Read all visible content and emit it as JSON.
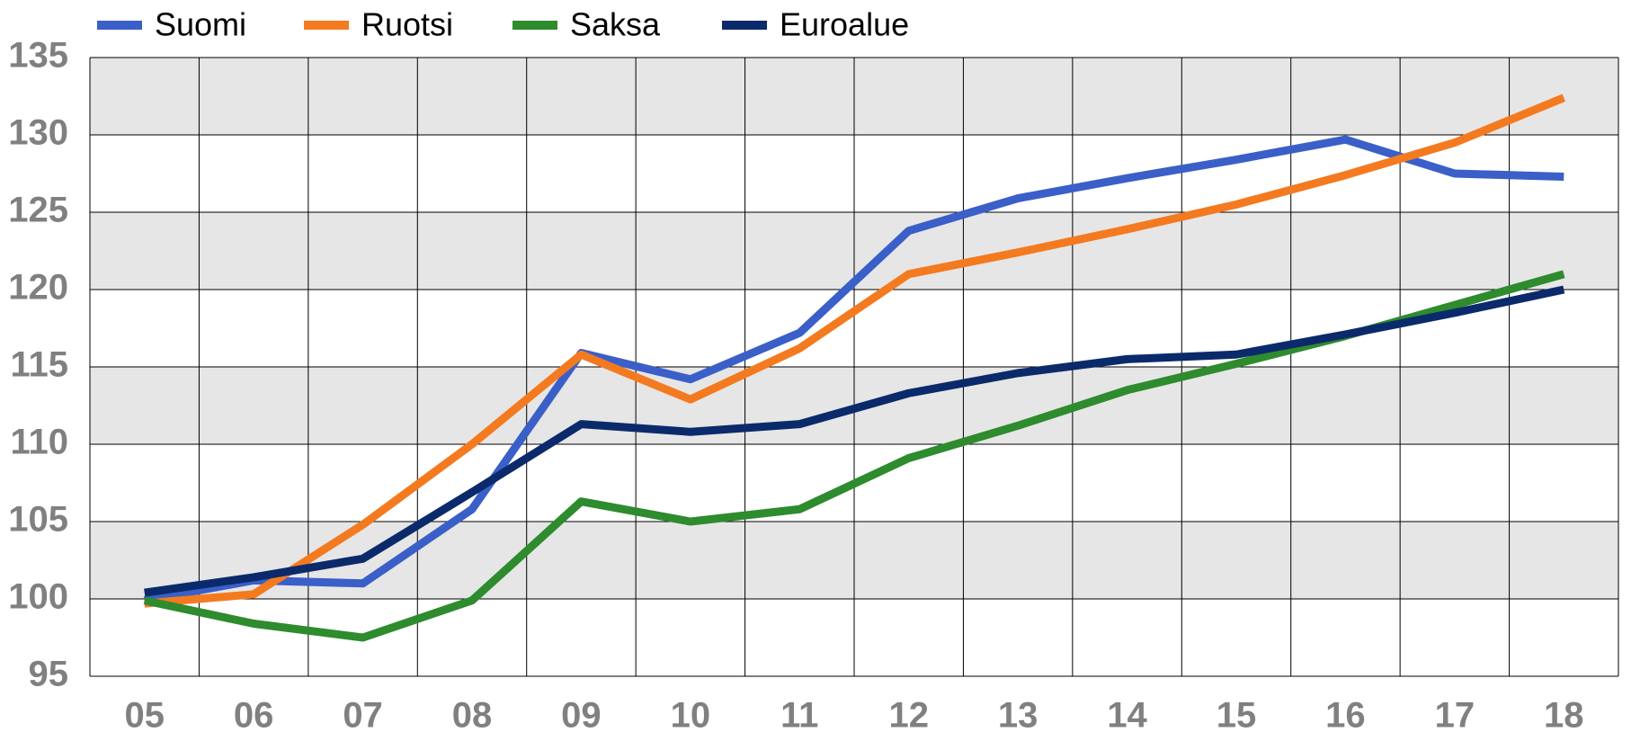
{
  "chart_data": {
    "type": "line",
    "categories": [
      "05",
      "06",
      "07",
      "08",
      "09",
      "10",
      "11",
      "12",
      "13",
      "14",
      "15",
      "16",
      "17",
      "18"
    ],
    "series": [
      {
        "name": "Suomi",
        "color": "#3a5fc8",
        "values": [
          99.9,
          101.2,
          101.0,
          105.8,
          115.9,
          114.2,
          117.2,
          123.8,
          125.9,
          127.2,
          128.4,
          129.7,
          127.5,
          127.3
        ]
      },
      {
        "name": "Ruotsi",
        "color": "#f47a20",
        "values": [
          99.7,
          100.3,
          104.8,
          110.0,
          115.8,
          112.9,
          116.2,
          121.0,
          122.4,
          123.9,
          125.5,
          127.4,
          129.5,
          132.4
        ]
      },
      {
        "name": "Saksa",
        "color": "#2e8b2e",
        "values": [
          99.9,
          98.4,
          97.5,
          99.9,
          106.3,
          105.0,
          105.8,
          109.1,
          111.2,
          113.5,
          115.2,
          117.0,
          119.0,
          121.0
        ]
      },
      {
        "name": "Euroalue",
        "color": "#0b2a6b",
        "values": [
          100.4,
          101.4,
          102.6,
          106.9,
          111.3,
          110.8,
          111.3,
          113.3,
          114.6,
          115.5,
          115.8,
          117.1,
          118.5,
          120.0
        ]
      }
    ],
    "ylim": [
      95,
      135
    ],
    "yticks": [
      95,
      100,
      105,
      110,
      115,
      120,
      125,
      130,
      135
    ],
    "grid": true,
    "legend": "top"
  }
}
